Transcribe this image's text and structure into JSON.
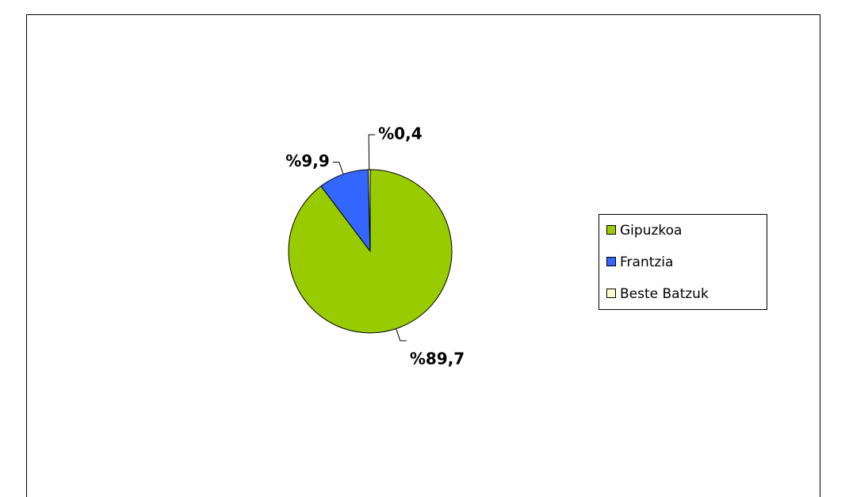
{
  "chart_data": {
    "type": "pie",
    "categories": [
      "Gipuzkoa",
      "Frantzia",
      "Beste Batzuk"
    ],
    "values": [
      89.7,
      9.9,
      0.4
    ],
    "value_labels": [
      "%89,7",
      "%9,9",
      "%0,4"
    ],
    "colors": [
      "#99cc00",
      "#3366ff",
      "#ffffcc"
    ],
    "legend": "right"
  }
}
